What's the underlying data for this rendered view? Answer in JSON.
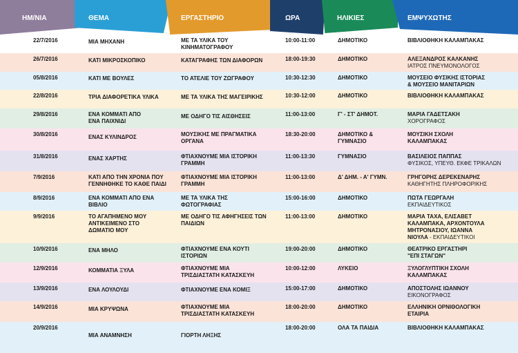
{
  "header": {
    "date": "ΗΜ/ΝΙΑ",
    "theme": "ΘΕΜΑ",
    "lab": "ΕΡΓΑΣΤΗΡΙΟ",
    "time": "ΩΡΑ",
    "age": "ΗΛΙΚΙΕΣ",
    "animator": "ΕΜΨΥΧΩΤΗΣ"
  },
  "rows": [
    {
      "color": "#ffffff",
      "date": "22/7/2016",
      "theme": [
        "ΜΙΑ ΜΗΧΑΝΗ"
      ],
      "lab": [
        "ΜΕ ΤΑ ΥΛΙΚΑ ΤΟΥ",
        "ΚΙΝΗΜΑΤΟΓΡΑΦΟΥ"
      ],
      "time": "10:00-11:00",
      "age": [
        "ΔΗΜΟΤΙΚΟ"
      ],
      "animator": [
        "ΒΙΒΛΙΟΘΗΚΗ ΚΑΛΑΜΠΑΚΑΣ"
      ]
    },
    {
      "color": "#fbe3d8",
      "date": "26/7/2016",
      "theme": [
        "ΚΑΤΙ ΜΙΚΡΟΣΚΟΠΙΚΟ"
      ],
      "lab": [
        "ΚΑΤΑΓΡΑΦΗΣ ΤΩΝ ΔΙΑΦΟΡΩΝ"
      ],
      "time": "18:00-19:30",
      "age": [
        "ΔΗΜΟΤΙΚΟ"
      ],
      "animator": [
        "ΑΛΕΞΑΝΔΡΟΣ ΚΑΛΚΑΝΗΣ"
      ],
      "animator_sub": "ΙΑΤΡΟΣ ΠΝΕΥΜΟΝΟΛΟΓΟΣ"
    },
    {
      "color": "#e2f1f9",
      "date": "05/8/2016",
      "theme": [
        "ΚΑΤΙ ΜΕ ΒΟΥΛΕΣ"
      ],
      "lab": [
        "ΤΟ ΑΤΕΛΙΕ ΤΟΥ ΖΩΓΡΑΦΟΥ"
      ],
      "time": "10:30-12:30",
      "age": [
        "ΔΗΜΟΤΙΚΟ"
      ],
      "animator": [
        "ΜΟΥΣΕΙΟ ΦΥΣΙΚΗΣ ΙΣΤΟΡΙΑΣ",
        "& ΜΟΥΣΕΙΟ ΜΑΝΙΤΑΡΙΩΝ"
      ]
    },
    {
      "color": "#fdf1da",
      "date": "22/8/2016",
      "theme": [
        "ΤΡΙΑ ΔΙΑΦΟΡΕΤΙΚΑ ΥΛΙΚΑ"
      ],
      "lab": [
        "ΜΕ ΤΑ ΥΛΙΚΑ ΤΗΣ ΜΑΓΕΙΡΙΚΗΣ"
      ],
      "time": "10:30-12:00",
      "age": [
        "ΔΗΜΟΤΙΚΟ"
      ],
      "animator": [
        "ΒΙΒΛΙΟΘΗΚΗ ΚΑΛΑΜΠΑΚΑΣ"
      ]
    },
    {
      "color": "#e1eee4",
      "date": "29/8/2016",
      "theme": [
        "ΕΝΑ ΚΟΜΜΑΤΙ ΑΠΟ",
        "ΕΝΑ ΠΑΙΧΝΙΔΙ"
      ],
      "lab": [
        "ΜΕ ΟΔΗΓΟ ΤΙΣ ΑΙΣΘΗΣΕΙΣ"
      ],
      "time": "11:00-13:00",
      "age": [
        "Γ' - ΣΤ' ΔΗΜΟΤ."
      ],
      "animator": [
        "ΜΑΡΙΑ ΓΑΔΕΤΣΑΚΗ"
      ],
      "animator_sub": "ΧΟΡΟΓΡΑΦΟΣ"
    },
    {
      "color": "#fbe3ec",
      "date": "30/8/2016",
      "theme": [
        "ΕΝΑΣ ΚΥΛΙΝΔΡΟΣ"
      ],
      "lab": [
        "ΜΟΥΣΙΚΗΣ ΜΕ ΠΡΑΓΜΑΤΙΚΑ",
        "ΟΡΓΑΝΑ"
      ],
      "time": "18:30-20:00",
      "age": [
        "ΔΗΜΟΤΙΚΟ &",
        "ΓΥΜΝΑΣΙΟ"
      ],
      "animator": [
        "ΜΟΥΣΙΚΗ ΣΧΟΛΗ",
        "ΚΑΛΑΜΠΑΚΑΣ"
      ]
    },
    {
      "color": "#e5e2f0",
      "date": "31/8/2016",
      "theme": [
        "ΕΝΑΣ ΧΑΡΤΗΣ"
      ],
      "lab": [
        "ΦΤΙΑΧΝΟΥΜΕ ΜΙΑ ΙΣΤΟΡΙΚΗ",
        "ΓΡΑΜΜΗ"
      ],
      "time": "11:00-13:30",
      "age": [
        "ΓΥΜΝΑΣΙΟ"
      ],
      "animator": [
        "ΒΑΣΙΛΕΙΟΣ ΠΑΠΠΑΣ"
      ],
      "animator_sub": "ΦΥΣΙΚΟΣ, ΥΠΕΥΘ. ΕΚΦΕ ΤΡΙΚΑΛΩΝ"
    },
    {
      "color": "#fbe3d8",
      "date": "7/9/2016",
      "theme": [
        "ΚΑΤΙ ΑΠΟ ΤΗΝ ΧΡΟΝΙΑ ΠΟΥ",
        "ΓΕΝΝΗΘΗΚΕ ΤΟ ΚΑΘΕ ΠΑΙΔΙ"
      ],
      "lab": [
        "ΦΤΙΑΧΝΟΥΜΕ ΜΙΑ ΙΣΤΟΡΙΚΗ",
        "ΓΡΑΜΜΗ"
      ],
      "time": "11:00-13:00",
      "age": [
        "Δ' ΔΗΜ. - Α' ΓΥΜΝ."
      ],
      "animator": [
        "ΓΡΗΓΟΡΗΣ ΔΕΡΕΚΕΝΑΡΗΣ"
      ],
      "animator_sub": "ΚΑΘΗΓΗΤΗΣ ΠΛΗΡΟΦΟΡΙΚΗΣ"
    },
    {
      "color": "#e2f1f9",
      "date": "8/9/2016",
      "theme": [
        "ΕΝΑ ΚΟΜΜΑΤΙ ΑΠΟ ΕΝΑ",
        "ΒΙΒΛΙΟ"
      ],
      "lab": [
        "ΜΕ ΤΑ ΥΛΙΚΑ ΤΗΣ",
        "ΦΩΤΟΓΡΑΦΙΑΣ"
      ],
      "time": "15:00-16:00",
      "age": [
        "ΔΗΜΟΤΙΚΟ"
      ],
      "animator": [
        "ΠΩΤΑ ΓΕΩΡΓΑΛΗ"
      ],
      "animator_sub": "ΕΚΠΑΙΔΕΥΤΙΚΟΣ"
    },
    {
      "color": "#fdf1da",
      "date": "9/9/2016",
      "theme": [
        "ΤΟ ΑΓΑΠΗΜΕΝΟ ΜΟΥ",
        "ΑΝΤΙΚΕΙΜΕΝΟ ΣΤΟ",
        "ΔΩΜΑΤΙΟ ΜΟΥ"
      ],
      "lab": [
        "ΜΕ ΟΔΗΓΟ ΤΙΣ ΑΦΗΓΗΣΕΙΣ ΤΩΝ",
        "ΠΑΙΔΙΩΝ"
      ],
      "time": "11:00-13:00",
      "age": [
        "ΔΗΜΟΤΙΚΟ"
      ],
      "animator": [
        "ΜΑΡΙΑ ΤΑΧΑ, ΕΛΙΣΑΒΕΤ",
        "ΚΑΛΑΜΠΑΚΑ, ΑΡΧΟΝΤΟΥΛΑ",
        "ΜΗΤΡΟΝΑΣΙΟΥ, ΙΩΑΝΝΑ"
      ],
      "animator_last": "ΝΙΟΥΛΑ",
      "animator_sub": " - ΕΚΠΑΙΔΕΥΤΙΚΟΙ"
    },
    {
      "color": "#e1eee4",
      "date": "10/9/2016",
      "theme": [
        "ΕΝΑ ΜΗΛΟ"
      ],
      "lab": [
        "ΦΤΙΑΧΝΟΥΜΕ ΕΝΑ ΚΟΥΤΙ",
        "ΙΣΤΟΡΙΩΝ"
      ],
      "time": "19:00-20:00",
      "age": [
        "ΔΗΜΟΤΙΚΟ"
      ],
      "animator": [
        "ΘΕΑΤΡΙΚΟ ΕΡΓΑΣΤΗΡΙ",
        "\"ΕΠΙ ΣΤΑΓΩΝ\""
      ]
    },
    {
      "color": "#fbe3ec",
      "date": "12/9/2016",
      "theme": [
        "ΚΟΜΜΑΤΙΑ ΞΥΛΑ"
      ],
      "lab": [
        "ΦΤΙΑΧΝΟΥΜΕ ΜΙΑ",
        "ΤΡΙΣΔΙΑΣΤΑΤΗ ΚΑΤΑΣΚΕΥΗ"
      ],
      "time": "10:00-12:00",
      "age": [
        "ΛΥΚΕΙΟ"
      ],
      "animator": [
        "ΞΥΛΟΓΛΥΠΤΙΚΗ ΣΧΟΛΗ",
        "ΚΑΛΑΜΠΑΚΑΣ"
      ]
    },
    {
      "color": "#e5e2f0",
      "date": "13/9/2016",
      "theme": [
        "ΕΝΑ ΛΟΥΛΟΥΔΙ"
      ],
      "lab": [
        "ΦΤΙΑΧΝΟΥΜΕ ΕΝΑ ΚΟΜΙΞ"
      ],
      "time": "15:00-17:00",
      "age": [
        "ΔΗΜΟΤΙΚΟ"
      ],
      "animator": [
        "ΑΠΟΣΤΟΛΗΣ ΙΩΑΝΝΟΥ"
      ],
      "animator_sub": "ΕΙΚΟΝΟΓΡΑΦΟΣ"
    },
    {
      "color": "#fbe3d8",
      "date": "14/9/2016",
      "theme": [
        "ΜΙΑ ΚΡΥΨΩΝΑ"
      ],
      "lab": [
        "ΦΤΙΑΧΝΟΥΜΕ ΜΙΑ",
        "ΤΡΙΣΔΙΑΣΤΑΤΗ ΚΑΤΑΣΚΕΥΗ"
      ],
      "time": "18:00-20:00",
      "age": [
        "ΔΗΜΟΤΙΚΟ"
      ],
      "animator": [
        "ΕΛΛΗΝΙΚΗ ΟΡΝΙΘΟΛΟΓΙΚΗ",
        "ΕΤΑΙΡΙΑ"
      ]
    },
    {
      "color": "#e2f1f9",
      "date": "20/9/2016",
      "theme": [
        "ΜΙΑ ΑΝΑΜΝΗΣΗ"
      ],
      "lab": [
        "ΓΙΟΡΤΗ ΛΗΞΗΣ"
      ],
      "time": "18:00-20:00",
      "age": [
        "ΟΛΑ ΤΑ ΠΑΙΔΙΑ"
      ],
      "animator": [
        "ΒΙΒΛΙΟΘΗΚΗ ΚΑΛΑΜΠΑΚΑΣ"
      ]
    }
  ]
}
